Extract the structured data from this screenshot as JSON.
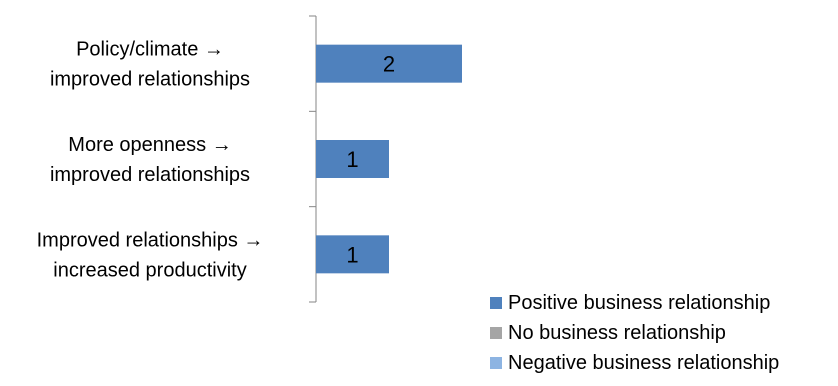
{
  "chart_data": {
    "type": "bar",
    "orientation": "horizontal",
    "categories": [
      [
        "Policy/climate →",
        "improved relationships"
      ],
      [
        "More openness →",
        "improved relationships"
      ],
      [
        "Improved relationships →",
        "increased productivity"
      ]
    ],
    "series": [
      {
        "name": "Positive business relationship",
        "values": [
          2,
          1,
          1
        ],
        "color": "#4f81bd"
      },
      {
        "name": "No business relationship",
        "values": [
          0,
          0,
          0
        ],
        "color": "#a5a5a5"
      },
      {
        "name": "Negative business relationship",
        "values": [
          0,
          0,
          0
        ],
        "color": "#8db4e2"
      }
    ],
    "data_labels": [
      "2",
      "1",
      "1"
    ],
    "xlim": [
      0,
      2
    ],
    "grid": false,
    "legend_position": "bottom-right"
  }
}
